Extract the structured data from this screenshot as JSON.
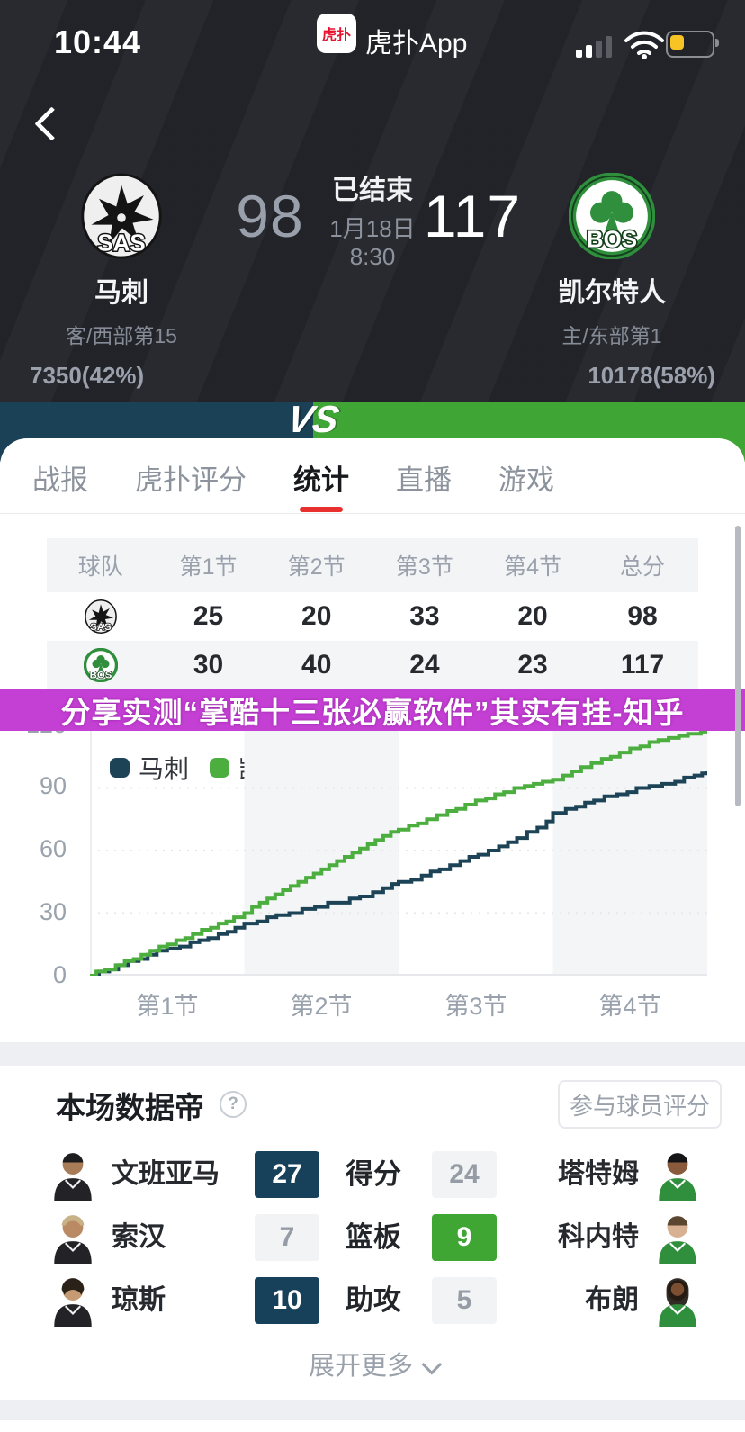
{
  "status_bar": {
    "time": "10:44",
    "app_logo_text": "虎扑",
    "app_name": "虎扑App"
  },
  "header": {
    "status": "已结束",
    "date": "1月18日",
    "start_time": "8:30",
    "away": {
      "abbr": "SAS",
      "name": "马刺",
      "score": "98",
      "rank": "客/西部第15",
      "votes": "7350(42%)",
      "percent": 42
    },
    "home": {
      "abbr": "BOS",
      "name": "凯尔特人",
      "score": "117",
      "rank": "主/东部第1",
      "votes": "10178(58%)",
      "percent": 58
    },
    "vs_label": "VS",
    "colors": {
      "away": "#1b4156",
      "home": "#3fa635"
    }
  },
  "tabs": {
    "items": [
      "战报",
      "虎扑评分",
      "统计",
      "直播",
      "游戏"
    ],
    "active_index": 2,
    "active_underline_color": "#e8312f"
  },
  "quarter_table": {
    "headers": [
      "球队",
      "第1节",
      "第2节",
      "第3节",
      "第4节",
      "总分"
    ],
    "rows": [
      {
        "team": "SAS",
        "values": [
          "25",
          "20",
          "33",
          "20",
          "98"
        ]
      },
      {
        "team": "BOS",
        "values": [
          "30",
          "40",
          "24",
          "23",
          "117"
        ]
      }
    ]
  },
  "ad_banner": {
    "text": "分享实测“掌酷十三张必赢软件”其实有挂-知乎",
    "bg": "#c43fd3"
  },
  "chart_data": {
    "type": "line",
    "subtype": "step-cumulative-score",
    "legend_position": "top-left",
    "grid": "horizontal-dotted",
    "x_axis": {
      "labels": [
        "第1节",
        "第2节",
        "第3节",
        "第4节"
      ],
      "range_minutes": [
        0,
        48
      ],
      "shaded_quarters": [
        2,
        4
      ]
    },
    "y_axis": {
      "ticks": [
        0,
        30,
        60,
        90,
        120
      ],
      "range": [
        0,
        120
      ]
    },
    "series": [
      {
        "name": "马刺",
        "color": "#1d4357",
        "quarter_cumulative": [
          25,
          45,
          78,
          98
        ],
        "final": 98,
        "step_points": [
          [
            0,
            0
          ],
          [
            0.7,
            2
          ],
          [
            1.5,
            3
          ],
          [
            2.2,
            5
          ],
          [
            3,
            7
          ],
          [
            3.8,
            8
          ],
          [
            4.5,
            10
          ],
          [
            5.2,
            12
          ],
          [
            6,
            13
          ],
          [
            7,
            14
          ],
          [
            7.8,
            16
          ],
          [
            8.5,
            17
          ],
          [
            9.2,
            18
          ],
          [
            10,
            20
          ],
          [
            10.7,
            21
          ],
          [
            11.3,
            23
          ],
          [
            12,
            25
          ],
          [
            13,
            26
          ],
          [
            13.8,
            28
          ],
          [
            14.5,
            29
          ],
          [
            15.5,
            30
          ],
          [
            16.5,
            32
          ],
          [
            17.5,
            33
          ],
          [
            18.5,
            35
          ],
          [
            20.2,
            37
          ],
          [
            21,
            38
          ],
          [
            22,
            40
          ],
          [
            22.8,
            42
          ],
          [
            23.5,
            44
          ],
          [
            24,
            45
          ],
          [
            25,
            46
          ],
          [
            25.8,
            48
          ],
          [
            26.5,
            50
          ],
          [
            27.2,
            51
          ],
          [
            28,
            53
          ],
          [
            28.8,
            55
          ],
          [
            29.5,
            57
          ],
          [
            30.2,
            58
          ],
          [
            31,
            60
          ],
          [
            31.8,
            62
          ],
          [
            32.5,
            64
          ],
          [
            33.2,
            66
          ],
          [
            34,
            69
          ],
          [
            34.8,
            71
          ],
          [
            35.5,
            74
          ],
          [
            36,
            78
          ],
          [
            37,
            80
          ],
          [
            37.8,
            81
          ],
          [
            38.5,
            83
          ],
          [
            39.2,
            84
          ],
          [
            40,
            86
          ],
          [
            41,
            87
          ],
          [
            41.8,
            88
          ],
          [
            42.5,
            90
          ],
          [
            43.5,
            91
          ],
          [
            44.5,
            92
          ],
          [
            45.5,
            93
          ],
          [
            46.2,
            95
          ],
          [
            47,
            96
          ],
          [
            47.6,
            97
          ],
          [
            48,
            98
          ]
        ]
      },
      {
        "name": "凯尔特人",
        "color": "#4cae3f",
        "quarter_cumulative": [
          30,
          70,
          94,
          117
        ],
        "final": 117,
        "step_points": [
          [
            0,
            0
          ],
          [
            0.5,
            2
          ],
          [
            1.2,
            3
          ],
          [
            2,
            5
          ],
          [
            2.7,
            7
          ],
          [
            3.4,
            8
          ],
          [
            4,
            10
          ],
          [
            4.7,
            12
          ],
          [
            5.4,
            14
          ],
          [
            6,
            15
          ],
          [
            6.7,
            17
          ],
          [
            7.4,
            18
          ],
          [
            8,
            20
          ],
          [
            8.7,
            22
          ],
          [
            9.4,
            23
          ],
          [
            10,
            25
          ],
          [
            10.6,
            26
          ],
          [
            11.2,
            28
          ],
          [
            12,
            30
          ],
          [
            12.6,
            33
          ],
          [
            13.2,
            35
          ],
          [
            13.8,
            37
          ],
          [
            14.4,
            39
          ],
          [
            15,
            41
          ],
          [
            15.6,
            43
          ],
          [
            16.2,
            45
          ],
          [
            16.8,
            47
          ],
          [
            17.4,
            49
          ],
          [
            18,
            51
          ],
          [
            18.6,
            53
          ],
          [
            19.2,
            55
          ],
          [
            19.8,
            57
          ],
          [
            20.4,
            59
          ],
          [
            21,
            61
          ],
          [
            21.6,
            63
          ],
          [
            22.2,
            65
          ],
          [
            22.8,
            67
          ],
          [
            23.4,
            69
          ],
          [
            24,
            70
          ],
          [
            24.8,
            72
          ],
          [
            25.5,
            73
          ],
          [
            26.2,
            75
          ],
          [
            27,
            77
          ],
          [
            27.8,
            79
          ],
          [
            28.5,
            80
          ],
          [
            29.2,
            82
          ],
          [
            30,
            84
          ],
          [
            30.8,
            85
          ],
          [
            31.5,
            87
          ],
          [
            32.2,
            88
          ],
          [
            33,
            90
          ],
          [
            33.8,
            91
          ],
          [
            34.5,
            92
          ],
          [
            35.2,
            93
          ],
          [
            36,
            94
          ],
          [
            36.8,
            96
          ],
          [
            37.5,
            98
          ],
          [
            38.2,
            100
          ],
          [
            39,
            102
          ],
          [
            39.8,
            104
          ],
          [
            40.5,
            105
          ],
          [
            41.2,
            107
          ],
          [
            42,
            109
          ],
          [
            42.8,
            110
          ],
          [
            43.5,
            112
          ],
          [
            44.2,
            113
          ],
          [
            45,
            114
          ],
          [
            45.8,
            115
          ],
          [
            46.5,
            116
          ],
          [
            47.5,
            117
          ],
          [
            48,
            117
          ]
        ]
      }
    ]
  },
  "data_leader": {
    "title": "本场数据帝",
    "rate_button": "参与球员评分",
    "rows": [
      {
        "away_player": "文班亚马",
        "away_value": "27",
        "label": "得分",
        "home_value": "24",
        "home_player": "塔特姆",
        "highlight": "away"
      },
      {
        "away_player": "索汉",
        "away_value": "7",
        "label": "篮板",
        "home_value": "9",
        "home_player": "科内特",
        "highlight": "home"
      },
      {
        "away_player": "琼斯",
        "away_value": "10",
        "label": "助攻",
        "home_value": "5",
        "home_player": "布朗",
        "highlight": "away"
      }
    ],
    "expand_label": "展开更多"
  },
  "colors": {
    "header_bg": "#24262b",
    "spurs_navy": "#17405a",
    "celtics_green": "#3fa633",
    "banner_magenta": "#c43fd3",
    "tab_red": "#e8312f",
    "muted_text": "#9aa1ac"
  }
}
